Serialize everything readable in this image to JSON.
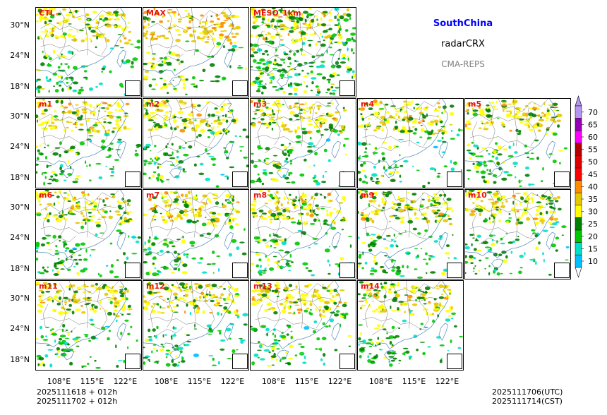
{
  "chart_data": {
    "type": "heatmap",
    "variable": "radarCRX",
    "region": "SouthChina",
    "model": "CMA-REPS",
    "panels": [
      "CTL",
      "MAX",
      "MESO_1km",
      "m1",
      "m2",
      "m3",
      "m4",
      "m5",
      "m6",
      "m7",
      "m8",
      "m9",
      "m10",
      "m11",
      "m12",
      "m13",
      "m14"
    ],
    "lat_ticks": [
      "30°N",
      "24°N",
      "18°N"
    ],
    "lon_ticks": [
      "108°E",
      "115°E",
      "122°E"
    ],
    "colorbar": {
      "levels": [
        10,
        15,
        20,
        25,
        30,
        35,
        40,
        45,
        50,
        55,
        60,
        65,
        70
      ],
      "colors": [
        "#1e90ff",
        "#00bfff",
        "#00e0c8",
        "#00c800",
        "#008000",
        "#ffff00",
        "#e6c800",
        "#ff8c00",
        "#ff0000",
        "#dc0000",
        "#b40000",
        "#ff00ff",
        "#9600b4",
        "#b496f0"
      ],
      "extend": "both"
    },
    "init_time_utc": "2025111618  +  012h",
    "init_time_cst": "2025111702  +  012h",
    "valid_time_utc": "2025111706(UTC)",
    "valid_time_cst": "2025111714(CST)"
  },
  "colors": {
    "region_title": "#0000ff",
    "model_name": "#808080",
    "panel_label": "#e8140c"
  }
}
